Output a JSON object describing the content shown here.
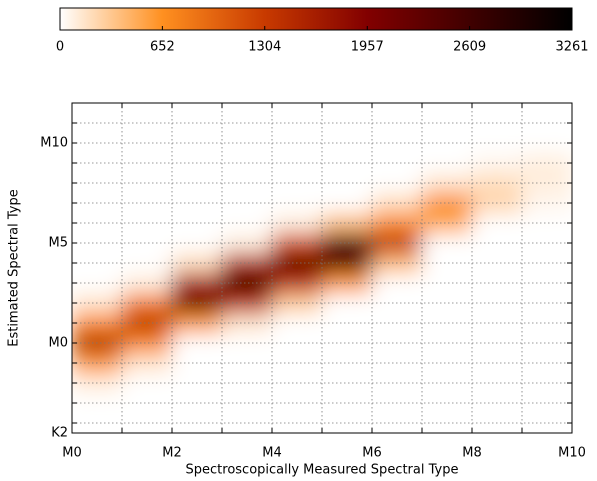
{
  "chart_data": {
    "type": "heatmap",
    "x_label": "Spectroscopically Measured Spectral Type",
    "y_label": "Estimated Spectral Type",
    "xlim": [
      0,
      10
    ],
    "xticks": [
      {
        "value": 0,
        "label": "M0"
      },
      {
        "value": 2,
        "label": "M2"
      },
      {
        "value": 4,
        "label": "M4"
      },
      {
        "value": 6,
        "label": "M6"
      },
      {
        "value": 8,
        "label": "M8"
      },
      {
        "value": 10,
        "label": "M10"
      }
    ],
    "minor_xticks": [
      1,
      3,
      5,
      7,
      9
    ],
    "ylim": [
      -4.5,
      12
    ],
    "yticks": [
      {
        "value": -4.5,
        "label": "K2"
      },
      {
        "value": 0,
        "label": "M0"
      },
      {
        "value": 5,
        "label": "M5"
      },
      {
        "value": 10,
        "label": "M10"
      }
    ],
    "minor_yticks": [
      -4,
      -3,
      -2,
      -1,
      1,
      2,
      3,
      4,
      6,
      7,
      8,
      9,
      11
    ],
    "grid": true,
    "x_bins": [
      0,
      1,
      2,
      3,
      4,
      5,
      6,
      7,
      8,
      9,
      10
    ],
    "y_bins": [
      -4.5,
      -3.5,
      -2.5,
      -1.5,
      -0.5,
      0.5,
      1.5,
      2.5,
      3.5,
      4.5,
      5.5,
      6.5,
      7.5,
      8.5,
      9.5,
      10.5,
      11.5
    ],
    "z": [
      [
        0,
        0,
        0,
        0,
        0,
        0,
        0,
        0,
        0,
        0
      ],
      [
        0,
        0,
        0,
        0,
        0,
        0,
        0,
        0,
        0,
        0
      ],
      [
        100,
        0,
        0,
        0,
        0,
        0,
        0,
        0,
        0,
        0
      ],
      [
        600,
        150,
        0,
        0,
        0,
        0,
        0,
        0,
        0,
        0
      ],
      [
        1500,
        700,
        0,
        0,
        0,
        0,
        0,
        0,
        0,
        0
      ],
      [
        700,
        1400,
        600,
        150,
        0,
        0,
        0,
        0,
        0,
        0
      ],
      [
        150,
        800,
        2200,
        1400,
        300,
        0,
        0,
        0,
        0,
        0
      ],
      [
        0,
        100,
        1600,
        3000,
        1400,
        600,
        0,
        0,
        0,
        0
      ],
      [
        0,
        0,
        200,
        1500,
        2400,
        2300,
        400,
        0,
        0,
        0
      ],
      [
        0,
        0,
        0,
        100,
        1200,
        2500,
        1400,
        0,
        0,
        0
      ],
      [
        0,
        0,
        0,
        0,
        100,
        400,
        700,
        500,
        0,
        0
      ],
      [
        0,
        0,
        0,
        0,
        0,
        0,
        200,
        700,
        250,
        50
      ],
      [
        0,
        0,
        0,
        0,
        0,
        0,
        0,
        150,
        200,
        100
      ],
      [
        0,
        0,
        0,
        0,
        0,
        0,
        0,
        0,
        50,
        100
      ],
      [
        0,
        0,
        0,
        0,
        0,
        0,
        0,
        0,
        0,
        0
      ],
      [
        0,
        0,
        0,
        0,
        0,
        0,
        0,
        0,
        0,
        0
      ]
    ],
    "zlim": [
      0,
      3261
    ],
    "colorbar_ticks": [
      0,
      652,
      1304,
      1957,
      2609,
      3261
    ],
    "colormap": [
      "#ffffff",
      "#ff9020",
      "#c83a00",
      "#820000",
      "#400000",
      "#000000"
    ]
  }
}
